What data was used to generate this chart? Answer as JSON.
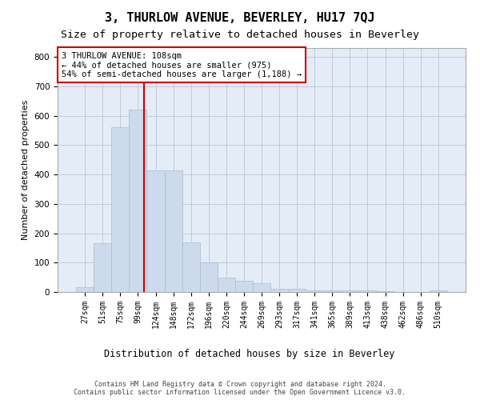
{
  "title": "3, THURLOW AVENUE, BEVERLEY, HU17 7QJ",
  "subtitle": "Size of property relative to detached houses in Beverley",
  "xlabel": "Distribution of detached houses by size in Beverley",
  "ylabel": "Number of detached properties",
  "footer_line1": "Contains HM Land Registry data © Crown copyright and database right 2024.",
  "footer_line2": "Contains public sector information licensed under the Open Government Licence v3.0.",
  "bar_labels": [
    "27sqm",
    "51sqm",
    "75sqm",
    "99sqm",
    "124sqm",
    "148sqm",
    "172sqm",
    "196sqm",
    "220sqm",
    "244sqm",
    "269sqm",
    "293sqm",
    "317sqm",
    "341sqm",
    "365sqm",
    "389sqm",
    "413sqm",
    "438sqm",
    "462sqm",
    "486sqm",
    "510sqm"
  ],
  "bar_values": [
    15,
    165,
    560,
    620,
    415,
    415,
    170,
    100,
    50,
    37,
    30,
    10,
    10,
    5,
    5,
    5,
    5,
    2,
    0,
    0,
    5
  ],
  "bar_color": "#ccdaec",
  "bar_edge_color": "#a8bcd0",
  "grid_color": "#c0ccd8",
  "background_color": "#e4ecf8",
  "annotation_line1": "3 THURLOW AVENUE: 108sqm",
  "annotation_line2": "← 44% of detached houses are smaller (975)",
  "annotation_line3": "54% of semi-detached houses are larger (1,188) →",
  "annotation_box_edge": "#cc0000",
  "red_line_color": "#cc0000",
  "ylim_max": 830,
  "title_fontsize": 11,
  "subtitle_fontsize": 9.5,
  "ylabel_fontsize": 8,
  "tick_fontsize": 7,
  "annotation_fontsize": 7.5,
  "xlabel_fontsize": 8.5,
  "footer_fontsize": 6
}
